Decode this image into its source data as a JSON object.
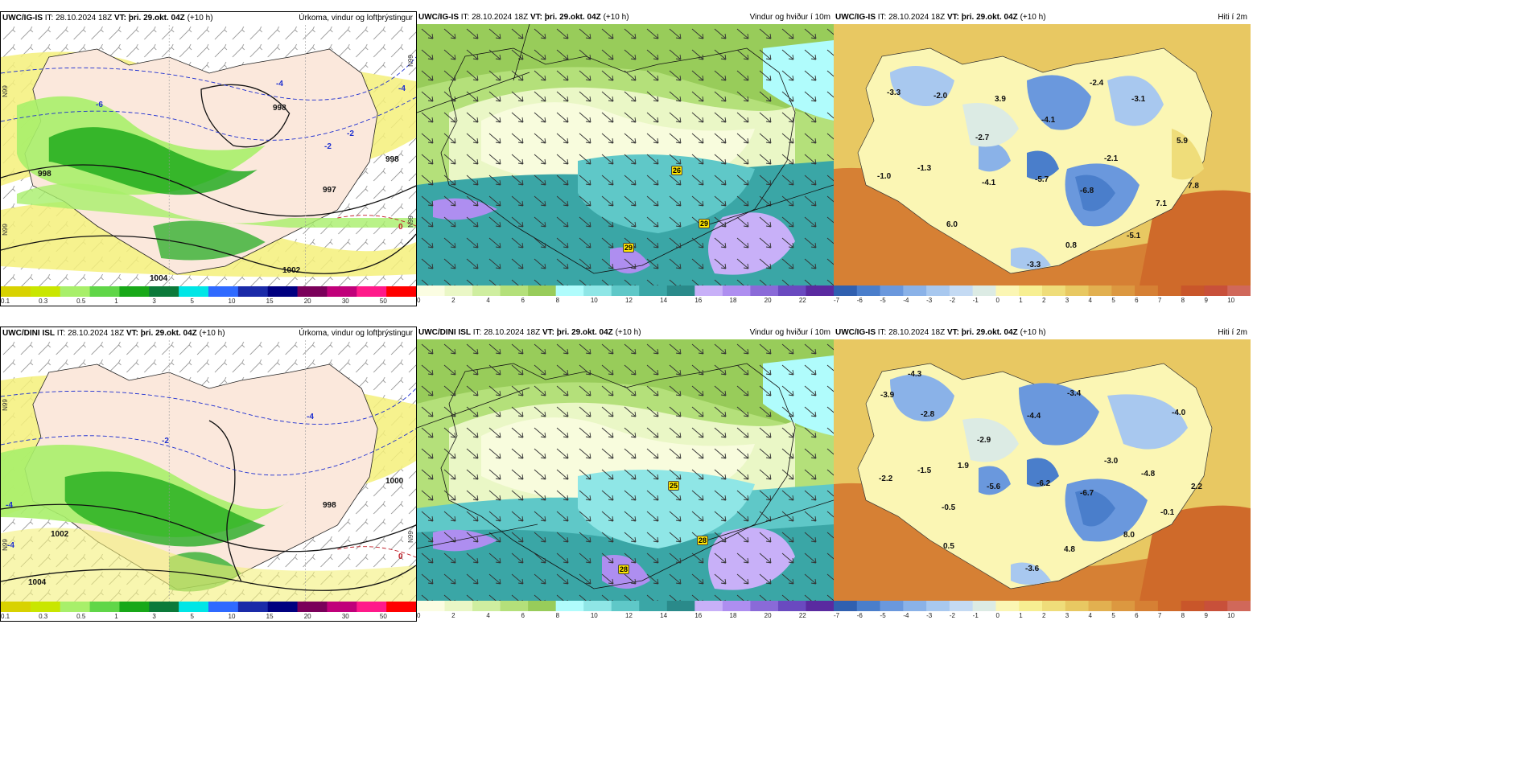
{
  "rows": [
    {
      "id": "top",
      "panels": [
        {
          "type": "precip",
          "model": "UWC/IG-IS",
          "it_label": "IT:",
          "it_value": "28.10.2024 18Z",
          "vt_label": "VT:",
          "vt_value": "þri. 29.okt. 04Z",
          "lead": "(+10 h)",
          "title": "Úrkoma, vindur og loftþrýstingur",
          "pressure_labels": [
            "998",
            "997",
            "1002",
            "1004",
            "998",
            "998"
          ],
          "temp_labels": [
            "-4",
            "-6",
            "-2",
            "-2",
            "0",
            "-4"
          ],
          "side_ticks": [
            "N99",
            "N99",
            "N99",
            "N99"
          ],
          "legend_ticks": [
            "0.1",
            "0.3",
            "0.5",
            "1",
            "3",
            "5",
            "10",
            "15",
            "20",
            "30",
            "50"
          ]
        },
        {
          "type": "wind",
          "model": "UWC/IG-IS",
          "it_label": "IT:",
          "it_value": "28.10.2024 18Z",
          "vt_label": "VT:",
          "vt_value": "þri. 29.okt. 04Z",
          "lead": "(+10 h)",
          "title": "Vindur og hviður í 10m",
          "gusts": [
            "26",
            "29",
            "29"
          ],
          "legend_ticks": [
            "0",
            "2",
            "4",
            "6",
            "8",
            "10",
            "12",
            "14",
            "16",
            "18",
            "20",
            "22"
          ]
        },
        {
          "type": "temp",
          "model": "UWC/IG-IS",
          "it_label": "IT:",
          "it_value": "28.10.2024 18Z",
          "vt_label": "VT:",
          "vt_value": "þri. 29.okt. 04Z",
          "lead": "(+10 h)",
          "title": "Hiti í 2m",
          "temps": [
            "-3.3",
            "-2.0",
            "3.9",
            "-2.4",
            "-3.1",
            "-4.1",
            "-2.7",
            "5.9",
            "-1.3",
            "-1.0",
            "-2.1",
            "-4.1",
            "-5.7",
            "-6.8",
            "7.8",
            "7.1",
            "6.0",
            "-5.1",
            "0.8",
            "-3.3"
          ],
          "legend_ticks": [
            "-7",
            "-6",
            "-5",
            "-4",
            "-3",
            "-2",
            "-1",
            "0",
            "1",
            "2",
            "3",
            "4",
            "5",
            "6",
            "7",
            "8",
            "9",
            "10"
          ]
        }
      ]
    },
    {
      "id": "bottom",
      "panels": [
        {
          "type": "precip",
          "model": "UWC/DINI ISL",
          "it_label": "IT:",
          "it_value": "28.10.2024 18Z",
          "vt_label": "VT:",
          "vt_value": "þri. 29.okt. 04Z",
          "lead": "(+10 h)",
          "title": "Úrkoma, vindur og loftþrýstingur",
          "pressure_labels": [
            "998",
            "1002",
            "1004",
            "1000"
          ],
          "temp_labels": [
            "-4",
            "-4",
            "-2",
            "-4",
            "0"
          ],
          "side_ticks": [
            "N99",
            "N99",
            "N99"
          ],
          "legend_ticks": [
            "0.1",
            "0.3",
            "0.5",
            "1",
            "3",
            "5",
            "10",
            "15",
            "20",
            "30",
            "50"
          ]
        },
        {
          "type": "wind",
          "model": "UWC/DINI ISL",
          "it_label": "IT:",
          "it_value": "28.10.2024 18Z",
          "vt_label": "VT:",
          "vt_value": "þri. 29.okt. 04Z",
          "lead": "(+10 h)",
          "title": "Vindur og hviður í 10m",
          "gusts": [
            "25",
            "28",
            "28"
          ],
          "legend_ticks": [
            "0",
            "2",
            "4",
            "6",
            "8",
            "10",
            "12",
            "14",
            "16",
            "18",
            "20",
            "22"
          ]
        },
        {
          "type": "temp",
          "model": "UWC/IG-IS",
          "it_label": "IT:",
          "it_value": "28.10.2024 18Z",
          "vt_label": "VT:",
          "vt_value": "þri. 29.okt. 04Z",
          "lead": "(+10 h)",
          "title": "Hiti í 2m",
          "temps": [
            "-4.3",
            "-3.9",
            "-2.8",
            "-3.4",
            "-4.4",
            "-4.0",
            "-2.9",
            "-3.0",
            "1.9",
            "-1.5",
            "-2.2",
            "-5.6",
            "-6.2",
            "-4.8",
            "-6.7",
            "2.2",
            "-0.5",
            "-0.1",
            "8.0",
            "0.5",
            "4.8",
            "-3.6"
          ],
          "legend_ticks": [
            "-7",
            "-6",
            "-5",
            "-4",
            "-3",
            "-2",
            "-1",
            "0",
            "1",
            "2",
            "3",
            "4",
            "5",
            "6",
            "7",
            "8",
            "9",
            "10"
          ]
        }
      ]
    }
  ],
  "colors": {
    "precip_scale": [
      "#d8d200",
      "#c9e600",
      "#a8ef6a",
      "#60d648",
      "#18a818",
      "#0c7a3a",
      "#00e6e6",
      "#2f6aff",
      "#1a2aa8",
      "#000080",
      "#7a005a",
      "#c0007a",
      "#ff1a8a",
      "#ff0000"
    ],
    "wind_scale": [
      "#fbfde2",
      "#eaf7c6",
      "#cfeea0",
      "#b4e07a",
      "#98cc5a",
      "#b0fcfc",
      "#8fe6e6",
      "#5fc8c8",
      "#3aa6a6",
      "#2a8a8a",
      "#c8b0f8",
      "#ae8ef0",
      "#8a6ad8",
      "#6a4ac0",
      "#5a2aa0"
    ],
    "temp_scale": [
      "#3060b0",
      "#4a7ecb",
      "#6a98dd",
      "#8ab2e8",
      "#a8c8ef",
      "#c4daf3",
      "#dcebe4",
      "#fbf6b4",
      "#f7ef92",
      "#efdd7a",
      "#e8c862",
      "#e2b050",
      "#dc9840",
      "#d68034",
      "#cf6a2a",
      "#c9562a",
      "#c8503a",
      "#d0685a"
    ],
    "land_precip": "#fbe8dc",
    "isobar": "#111111",
    "isotherm": "#1d2fd0"
  }
}
